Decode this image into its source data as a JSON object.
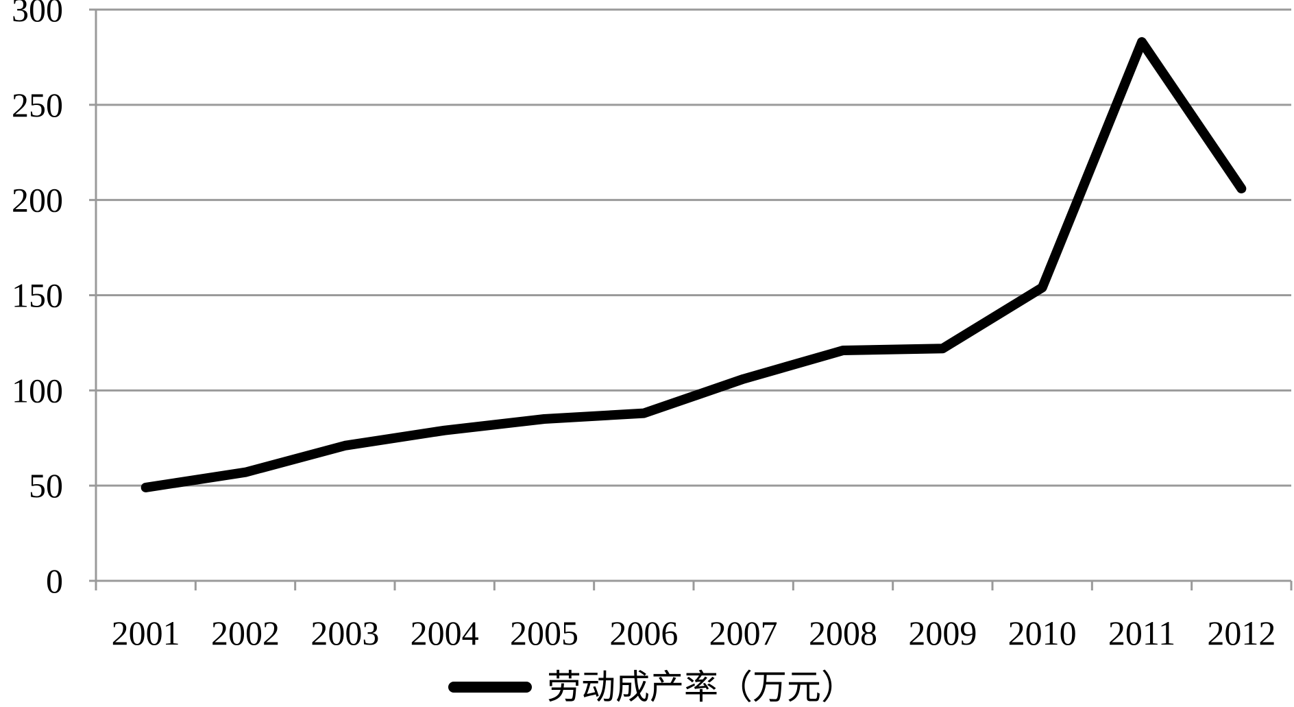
{
  "chart_data": {
    "type": "line",
    "title": "",
    "xlabel": "",
    "ylabel": "",
    "categories": [
      "2001",
      "2002",
      "2003",
      "2004",
      "2005",
      "2006",
      "2007",
      "2008",
      "2009",
      "2010",
      "2011",
      "2012"
    ],
    "series": [
      {
        "name": "劳动成产率（万元）",
        "values": [
          49,
          57,
          71,
          79,
          85,
          88,
          106,
          121,
          122,
          154,
          283,
          206
        ]
      }
    ],
    "ylim": [
      0,
      300
    ],
    "yticks": [
      "0",
      "50",
      "100",
      "150",
      "200",
      "250",
      "300"
    ],
    "grid": "horizontal",
    "legend_position": "bottom-center",
    "line_color": "#000000",
    "grid_color": "#9a9a9a"
  }
}
